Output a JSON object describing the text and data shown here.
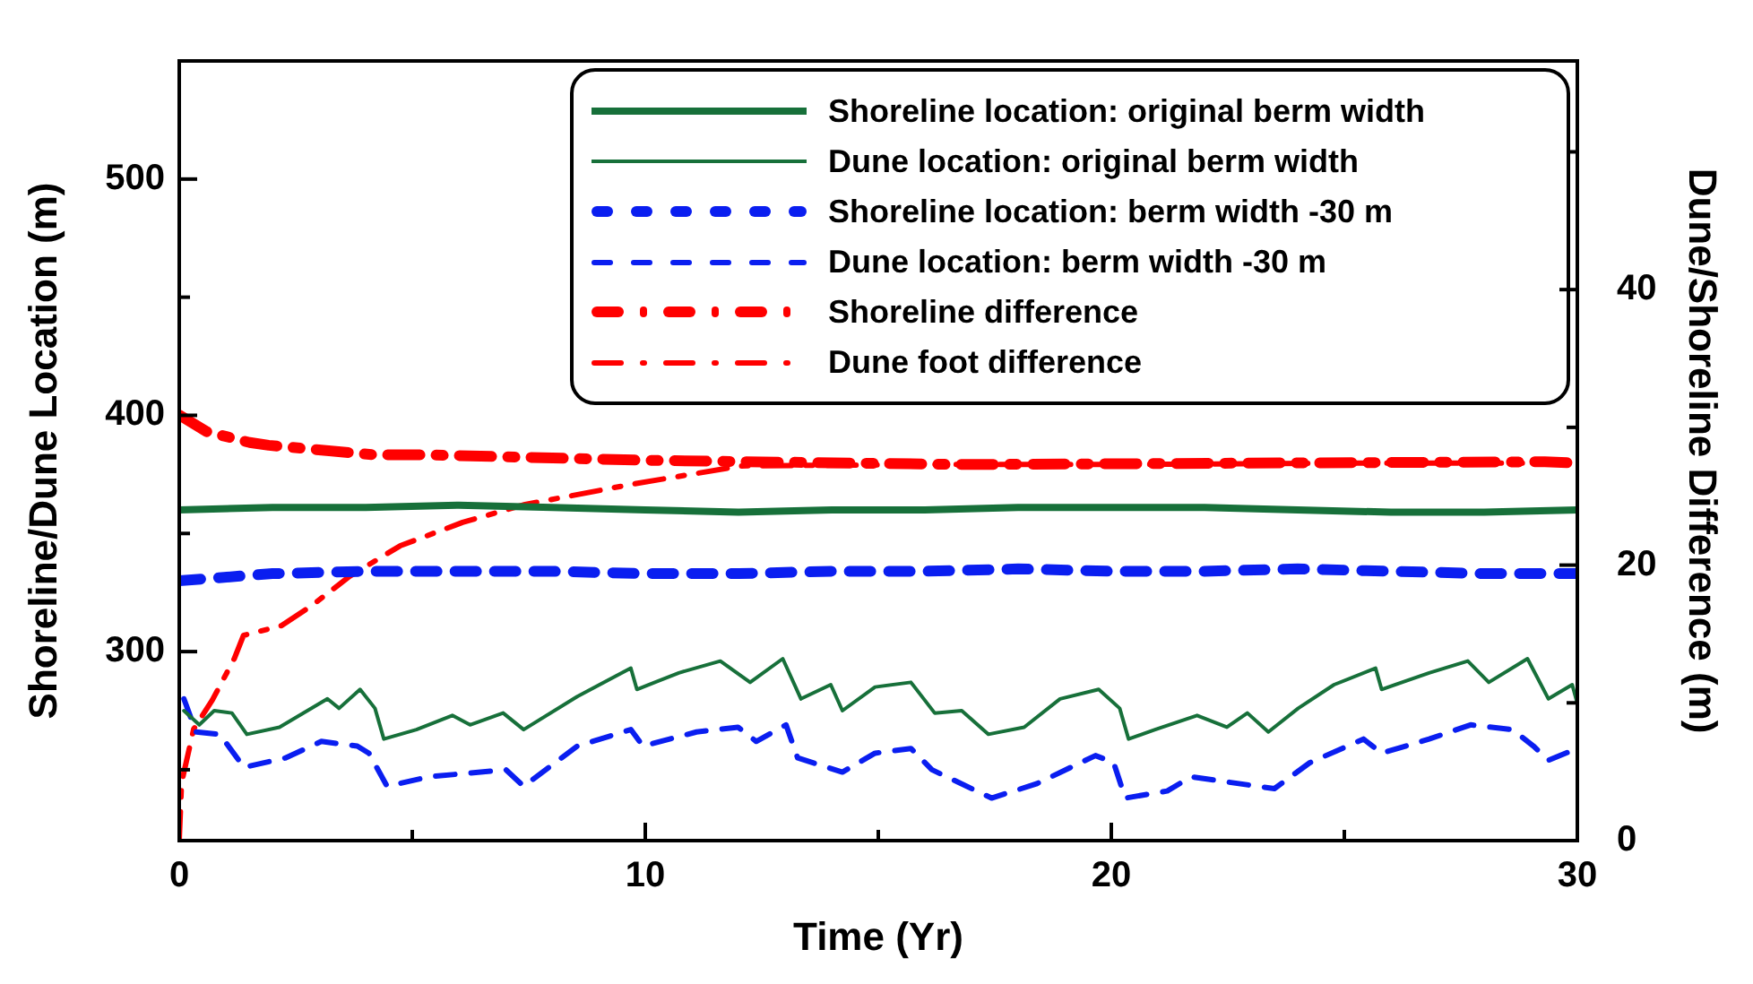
{
  "chart_data": {
    "type": "line",
    "xlabel": "Time (Yr)",
    "ylabel": "Shoreline/Dune Location (m)",
    "y2label": "Dune/Shoreline Difference (m)",
    "xlim": [
      0,
      30
    ],
    "xticks": [
      0,
      {
        "value": 5,
        "label": null
      },
      10,
      {
        "value": 15,
        "label": null
      },
      20,
      {
        "value": 25,
        "label": null
      },
      30
    ],
    "ylim": [
      220,
      550
    ],
    "yticks": [
      {
        "value": 250,
        "label": null
      },
      300,
      {
        "value": 350,
        "label": null
      },
      400,
      {
        "value": 450,
        "label": null
      },
      500
    ],
    "y2lim": [
      0,
      56.6
    ],
    "y2ticks": [
      0,
      {
        "value": 10,
        "label": null
      },
      20,
      {
        "value": 30,
        "label": null
      },
      40,
      {
        "value": 50,
        "label": null
      }
    ],
    "legend": "top right",
    "grid": false,
    "series": [
      {
        "name": "Shoreline location: original berm width",
        "color": "#17703a",
        "line_style": "solid",
        "x": [
          0,
          2,
          4,
          6,
          8,
          10,
          12,
          14,
          16,
          18,
          20,
          22,
          24,
          26,
          28,
          30
        ],
        "values": [
          360,
          361,
          361,
          362,
          361,
          360,
          359,
          360,
          360,
          361,
          361,
          361,
          360,
          359,
          359,
          360
        ]
      },
      {
        "name": "Dune location: original berm width",
        "color": "#17703a",
        "line_style": "solid",
        "x": [
          0.1,
          0.43,
          0.75,
          1.13,
          1.45,
          2.15,
          3.18,
          3.43,
          3.88,
          4.2,
          4.39,
          5.09,
          5.86,
          6.24,
          6.95,
          7.39,
          8.54,
          9.69,
          9.82,
          10.72,
          11.61,
          12.25,
          12.95,
          13.34,
          13.98,
          14.23,
          14.93,
          15.7,
          16.21,
          16.79,
          17.36,
          18.13,
          18.9,
          19.73,
          20.18,
          20.37,
          20.94,
          21.84,
          22.48,
          22.92,
          23.37,
          24.01,
          24.78,
          25.67,
          25.8,
          26.82,
          27.65,
          28.1,
          28.93,
          29.38,
          29.89,
          30
        ],
        "values": [
          275,
          269,
          275,
          274,
          265,
          268,
          280,
          276,
          284,
          276,
          263,
          267,
          273,
          269,
          274,
          267,
          281,
          293,
          284,
          291,
          296,
          287,
          297,
          280,
          286,
          275,
          285,
          287,
          274,
          275,
          265,
          268,
          280,
          284,
          276,
          263,
          267,
          273,
          268,
          274,
          266,
          276,
          286,
          293,
          284,
          291,
          296,
          287,
          297,
          280,
          286,
          278
        ]
      },
      {
        "name": "Shoreline location: berm width -30 m",
        "color": "#0a1ef0",
        "line_style": "dashed",
        "x": [
          0,
          2,
          4,
          6,
          8,
          10,
          12,
          14,
          16,
          18,
          20,
          22,
          24,
          26,
          28,
          30
        ],
        "values": [
          330,
          333,
          334,
          334,
          334,
          333,
          333,
          334,
          334,
          335,
          334,
          334,
          335,
          334,
          333,
          333
        ]
      },
      {
        "name": "Dune location: berm width -30 m",
        "color": "#0a1ef0",
        "line_style": "dashed",
        "x": [
          0.1,
          0.36,
          0.87,
          1.39,
          2.28,
          3.05,
          3.82,
          4.07,
          4.46,
          5.35,
          7.01,
          7.39,
          8.54,
          9.69,
          9.95,
          11.1,
          11.99,
          12.38,
          13.02,
          13.27,
          14.23,
          14.93,
          15.7,
          16.15,
          17.43,
          18.39,
          19.66,
          20.05,
          20.3,
          21.2,
          21.71,
          23.5,
          24.26,
          25.41,
          25.8,
          26.82,
          27.71,
          28.61,
          29.06,
          29.38,
          30
        ],
        "values": [
          280,
          266,
          265,
          251,
          255,
          262,
          260,
          257,
          243,
          247,
          250,
          243,
          260,
          267,
          260,
          266,
          268,
          262,
          269,
          255,
          249,
          257,
          259,
          250,
          238,
          244,
          256,
          253,
          238,
          241,
          247,
          242,
          253,
          263,
          257,
          263,
          269,
          267,
          260,
          254,
          259
        ]
      },
      {
        "name": "Shoreline difference",
        "color": "#ff0000",
        "line_style": "dashdot",
        "axis": "y2",
        "x": [
          0,
          0.58,
          1.51,
          1.92,
          4.2,
          5.35,
          10.14,
          16.85,
          22.6,
          29.3,
          30
        ],
        "values": [
          30.9,
          29.7,
          28.9,
          28.7,
          28,
          28,
          27.6,
          27.3,
          27.4,
          27.5,
          27.4
        ]
      },
      {
        "name": "Dune foot difference",
        "color": "#ff0000",
        "line_style": "dashdot",
        "axis": "y2",
        "x": [
          0,
          0.05,
          0.31,
          0.71,
          1.18,
          1.38,
          2.19,
          2.86,
          3.66,
          4.74,
          6.08,
          7.42,
          9.76,
          12.06,
          16,
          20,
          25,
          30
        ],
        "values": [
          0,
          4.2,
          8.1,
          10.2,
          13.2,
          14.9,
          15.6,
          17.1,
          19.2,
          21.4,
          23.1,
          24.4,
          25.9,
          27.2,
          27.3,
          27.3,
          27.4,
          27.4
        ]
      }
    ]
  }
}
